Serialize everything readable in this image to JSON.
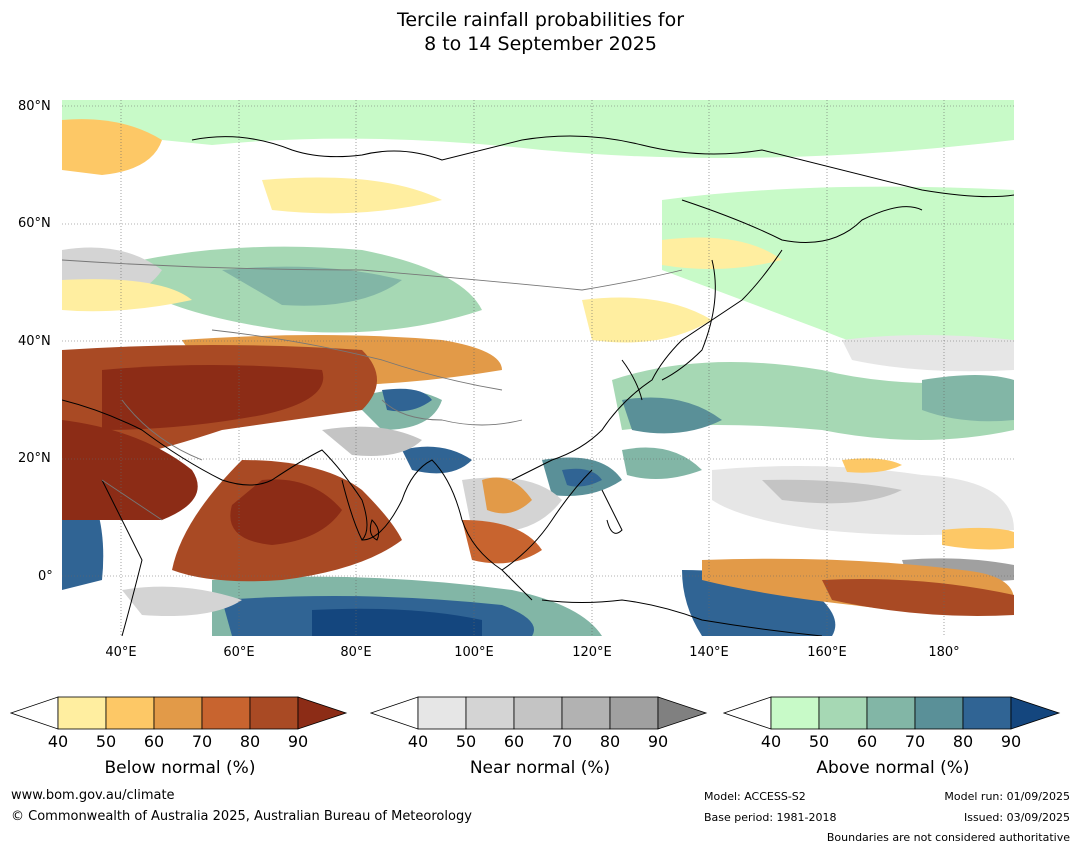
{
  "title_line1": "Tercile rainfall probabilities for",
  "title_line2": "8 to 14 September 2025",
  "lat_labels": [
    "80°N",
    "60°N",
    "40°N",
    "20°N",
    "0°"
  ],
  "lon_labels": [
    "40°E",
    "60°E",
    "80°E",
    "100°E",
    "120°E",
    "140°E",
    "160°E",
    "180°"
  ],
  "colorbars": [
    {
      "label": "Below normal (%)",
      "ticks": [
        "40",
        "50",
        "60",
        "70",
        "80",
        "90"
      ],
      "colors": [
        "#ffeea0",
        "#fdc866",
        "#e29a48",
        "#c8642f",
        "#a94a24",
        "#8c2c16"
      ]
    },
    {
      "label": "Near normal (%)",
      "ticks": [
        "40",
        "50",
        "60",
        "70",
        "80",
        "90"
      ],
      "colors": [
        "#e6e6e6",
        "#d4d4d4",
        "#c4c4c4",
        "#b2b2b2",
        "#a0a0a0",
        "#808080"
      ]
    },
    {
      "label": "Above normal (%)",
      "ticks": [
        "40",
        "50",
        "60",
        "70",
        "80",
        "90"
      ],
      "colors": [
        "#c8fac8",
        "#a6d8b4",
        "#82b6a6",
        "#5a9098",
        "#306494",
        "#14467e"
      ]
    }
  ],
  "footer": {
    "website": "www.bom.gov.au/climate",
    "copyright": "© Commonwealth of Australia 2025, Australian Bureau of Meteorology",
    "model": "Model: ACCESS-S2",
    "base_period": "Base period: 1981-2018",
    "model_run": "Model run: 01/09/2025",
    "issued": "Issued: 03/09/2025",
    "disclaimer": "Boundaries are not considered authoritative"
  }
}
